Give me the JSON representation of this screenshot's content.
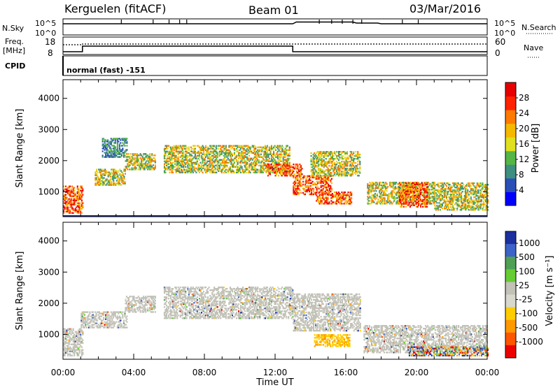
{
  "header": {
    "station": "Kerguelen (fitACF)",
    "beam": "Beam 01",
    "date": "03/Mar/2016"
  },
  "top_panels": {
    "nsky_label": "N.Sky",
    "nsky_ticks": [
      "10^5",
      "10^0"
    ],
    "nsearch_label": "N.Search",
    "nsearch_ticks": [
      "10^5",
      "10^0"
    ],
    "freq_label_1": "Freq.",
    "freq_label_2": "[MHz]",
    "freq_ticks": [
      "18",
      "8"
    ],
    "nave_label": "Nave",
    "nave_ticks": [
      "60",
      "0"
    ],
    "cpid_label": "CPID",
    "cpid_value": "normal (fast) -151"
  },
  "colors": {
    "power": [
      "#0000ff",
      "#2a50b8",
      "#3f8f80",
      "#55b545",
      "#e0e020",
      "#f5b800",
      "#ff7a00",
      "#ff2200",
      "#e60000"
    ],
    "velocity": [
      "#1c2f9e",
      "#3c63c8",
      "#4f9f55",
      "#66cc33",
      "#c2c2b8",
      "#d8d8cc",
      "#ffcc00",
      "#ff9900",
      "#ff5500",
      "#ee0000"
    ]
  },
  "chart_data": [
    {
      "type": "heatmap",
      "title": "Power",
      "ylabel": "Slant Range [km]",
      "xlabel": "",
      "x_ticks": [
        "00:00",
        "04:00",
        "08:00",
        "12:00",
        "16:00",
        "20:00",
        "00:00"
      ],
      "y_ticks": [
        "1000",
        "2000",
        "3000",
        "4000"
      ],
      "ylim": [
        200,
        4600
      ],
      "colorbar_label": "Power [dB]",
      "colorbar_ticks": [
        "4",
        "8",
        "12",
        "16",
        "20",
        "24",
        "28"
      ],
      "colorbar_range": [
        0,
        32
      ],
      "echo_regions": [
        {
          "t": [
            0.0,
            1.1
          ],
          "r": [
            300,
            1200
          ],
          "level": "high"
        },
        {
          "t": [
            1.8,
            3.5
          ],
          "r": [
            1200,
            1700
          ],
          "level": "mid"
        },
        {
          "t": [
            2.2,
            3.6
          ],
          "r": [
            2100,
            2700
          ],
          "level": "low"
        },
        {
          "t": [
            3.5,
            5.2
          ],
          "r": [
            1700,
            2200
          ],
          "level": "mid"
        },
        {
          "t": [
            5.7,
            12.8
          ],
          "r": [
            1600,
            2500
          ],
          "level": "mid"
        },
        {
          "t": [
            11.5,
            13.5
          ],
          "r": [
            1500,
            1900
          ],
          "level": "high"
        },
        {
          "t": [
            13.0,
            15.2
          ],
          "r": [
            900,
            1500
          ],
          "level": "high"
        },
        {
          "t": [
            14.0,
            16.8
          ],
          "r": [
            1500,
            2300
          ],
          "level": "mid"
        },
        {
          "t": [
            14.3,
            16.3
          ],
          "r": [
            600,
            1000
          ],
          "level": "high"
        },
        {
          "t": [
            17.2,
            21.0
          ],
          "r": [
            600,
            1300
          ],
          "level": "mid"
        },
        {
          "t": [
            19.0,
            20.6
          ],
          "r": [
            500,
            1300
          ],
          "level": "high"
        },
        {
          "t": [
            21.0,
            24.0
          ],
          "r": [
            400,
            1300
          ],
          "level": "mid"
        }
      ]
    },
    {
      "type": "heatmap",
      "title": "Velocity",
      "ylabel": "Slant Range [km]",
      "xlabel": "Time UT",
      "x_ticks": [
        "00:00",
        "04:00",
        "08:00",
        "12:00",
        "16:00",
        "20:00",
        "00:00"
      ],
      "y_ticks": [
        "1000",
        "2000",
        "3000",
        "4000"
      ],
      "ylim": [
        200,
        4600
      ],
      "colorbar_label": "Velocity [m s⁻¹]",
      "colorbar_ticks": [
        "1000",
        "500",
        "100",
        "25",
        "-25",
        "-100",
        "-500",
        "-1000"
      ],
      "echo_regions": [
        {
          "t": [
            0.0,
            1.1
          ],
          "r": [
            300,
            1200
          ],
          "level": "grey"
        },
        {
          "t": [
            1.0,
            3.6
          ],
          "r": [
            1200,
            1700
          ],
          "level": "grey"
        },
        {
          "t": [
            3.5,
            5.2
          ],
          "r": [
            1700,
            2200
          ],
          "level": "grey"
        },
        {
          "t": [
            5.7,
            13.0
          ],
          "r": [
            1500,
            2500
          ],
          "level": "grey"
        },
        {
          "t": [
            13.0,
            16.8
          ],
          "r": [
            1100,
            2300
          ],
          "level": "grey"
        },
        {
          "t": [
            14.2,
            16.2
          ],
          "r": [
            600,
            1000
          ],
          "level": "orange"
        },
        {
          "t": [
            17.0,
            24.0
          ],
          "r": [
            400,
            1300
          ],
          "level": "grey"
        },
        {
          "t": [
            19.5,
            24.0
          ],
          "r": [
            300,
            600
          ],
          "level": "mixed"
        }
      ]
    }
  ]
}
